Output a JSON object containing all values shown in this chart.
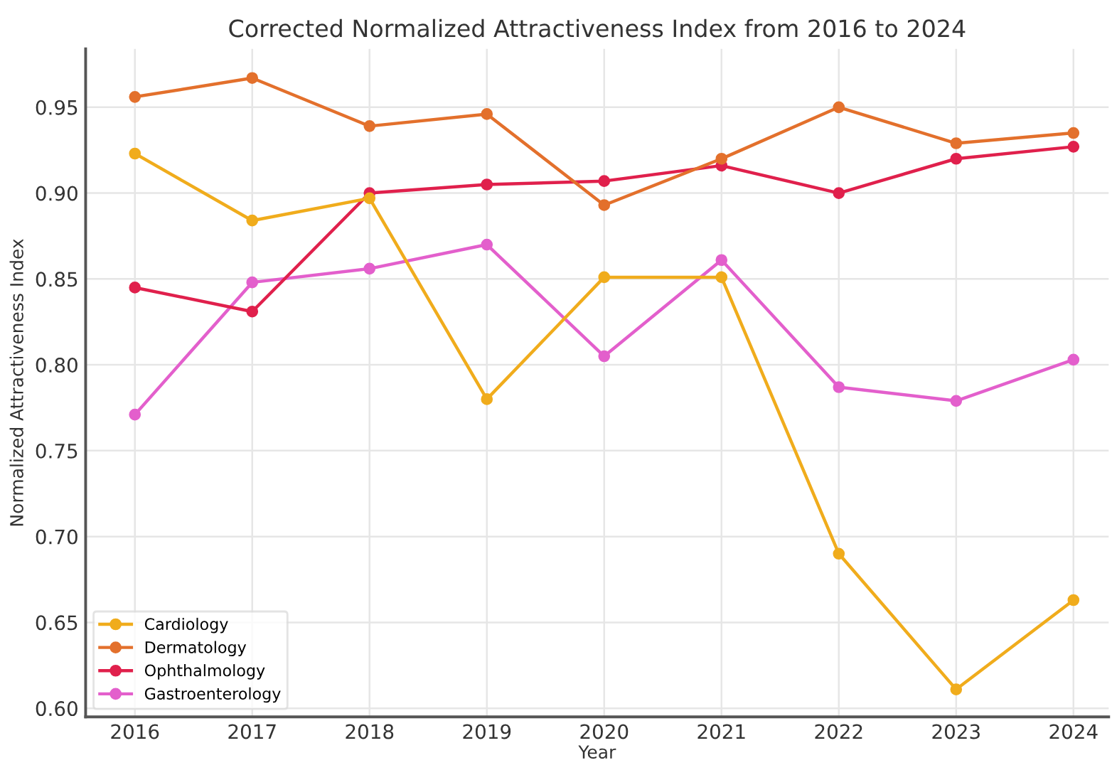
{
  "chart_data": {
    "type": "line",
    "title": "Corrected Normalized Attractiveness Index from 2016 to 2024",
    "xlabel": "Year",
    "ylabel": "Normalized Attractiveness Index",
    "x": [
      2016,
      2017,
      2018,
      2019,
      2020,
      2021,
      2022,
      2023,
      2024
    ],
    "series": [
      {
        "name": "Cardiology",
        "color": "#f0ac1c",
        "values": [
          0.923,
          0.884,
          0.897,
          0.78,
          0.851,
          0.851,
          0.69,
          0.611,
          0.663
        ]
      },
      {
        "name": "Dermatology",
        "color": "#e3702c",
        "values": [
          0.956,
          0.967,
          0.939,
          0.946,
          0.893,
          0.92,
          0.95,
          0.929,
          0.935
        ]
      },
      {
        "name": "Ophthalmology",
        "color": "#e0204c",
        "values": [
          0.845,
          0.831,
          0.9,
          0.905,
          0.907,
          0.916,
          0.9,
          0.92,
          0.927
        ]
      },
      {
        "name": "Gastroenterology",
        "color": "#e35fcc",
        "values": [
          0.771,
          0.848,
          0.856,
          0.87,
          0.805,
          0.861,
          0.787,
          0.779,
          0.803
        ]
      }
    ],
    "xlim": [
      2015.58,
      2024.3
    ],
    "xticks": [
      2016,
      2017,
      2018,
      2019,
      2020,
      2021,
      2022,
      2023,
      2024
    ],
    "ylim": [
      0.595,
      0.984
    ],
    "yticks": [
      {
        "value": 0.6,
        "label": "0.60"
      },
      0.65,
      {
        "value": 0.7,
        "label": "0.70"
      },
      0.75,
      {
        "value": 0.8,
        "label": "0.80"
      },
      0.85,
      {
        "value": 0.9,
        "label": "0.90"
      },
      0.95
    ],
    "grid": true,
    "legend": "bottom left",
    "marker": "circle",
    "line_style": "solid"
  }
}
